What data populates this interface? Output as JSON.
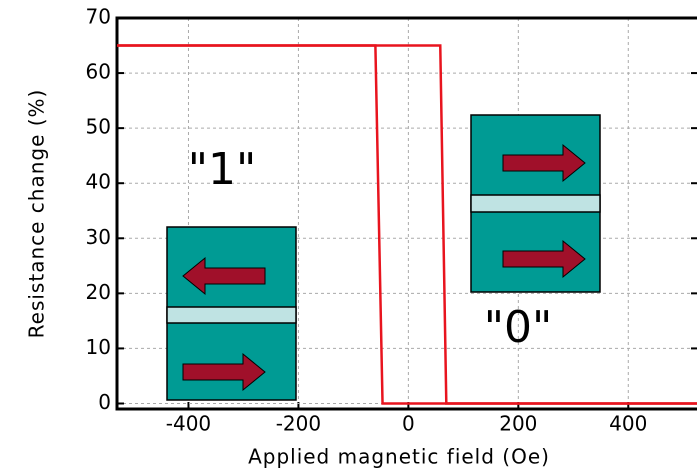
{
  "chart_data": {
    "type": "line",
    "x_label": "Applied magnetic field (Oe)",
    "y_label": "Resistance change (%)",
    "xlim": [
      -530,
      525
    ],
    "ylim": [
      -1,
      70
    ],
    "xticks": [
      -400,
      -200,
      0,
      200,
      400
    ],
    "yticks": [
      0,
      10,
      20,
      30,
      40,
      50,
      60,
      70
    ],
    "grid": true,
    "series": [
      {
        "color": "#e8141e",
        "x": [
          525,
          -47,
          -60,
          -530
        ],
        "values": [
          0,
          0,
          65,
          65
        ]
      },
      {
        "color": "#e8141e",
        "x": [
          -530,
          58,
          69,
          525
        ],
        "values": [
          65,
          65,
          0,
          0
        ]
      }
    ],
    "annotations": [
      "\"1\"",
      "\"0\""
    ]
  }
}
